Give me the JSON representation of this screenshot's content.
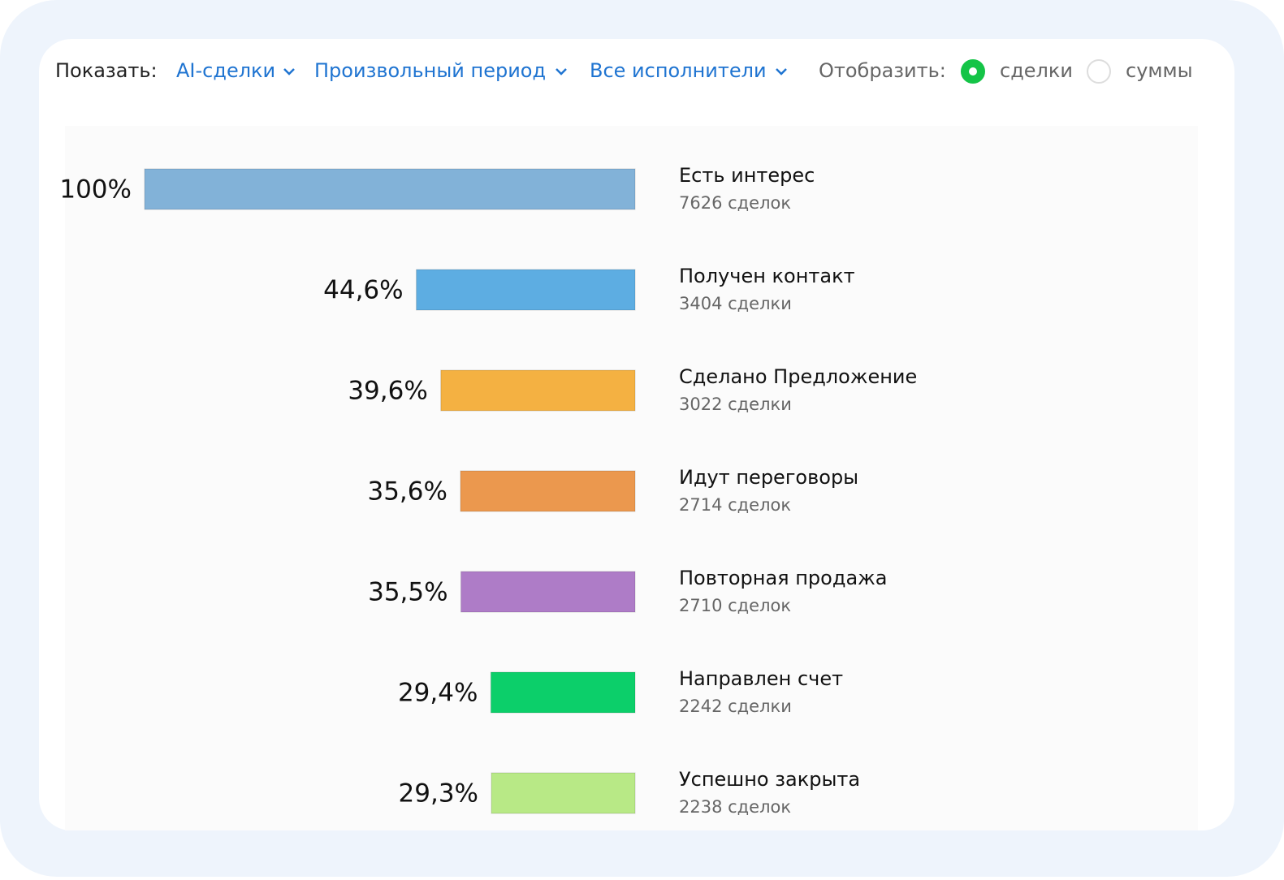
{
  "ui": {
    "show_label": "Показать:",
    "filters": [
      "AI-сделки",
      "Произвольный период",
      "Все исполнители"
    ],
    "display_label": "Отобразить:",
    "display_options": [
      "сделки",
      "суммы"
    ],
    "display_selected": 0
  },
  "chart_data": {
    "type": "funnel",
    "categories": [
      "Есть интерес",
      "Получен контакт",
      "Сделано Предложение",
      "Идут переговоры",
      "Повторная продажа",
      "Направлен счет",
      "Успешно закрыта"
    ],
    "sublabels": [
      "7626 сделок",
      "3404 сделки",
      "3022 сделки",
      "2714 сделок",
      "2710 сделок",
      "2242 сделки",
      "2238 сделок"
    ],
    "values": [
      100,
      44.6,
      39.6,
      35.6,
      35.5,
      29.4,
      29.3
    ],
    "value_labels": [
      "100%",
      "44,6%",
      "39,6%",
      "35,6%",
      "35,5%",
      "29,4%",
      "29,3%"
    ],
    "colors": [
      "#82b2d8",
      "#5dade2",
      "#f4b142",
      "#eb984e",
      "#ae7cc7",
      "#0ccf6a",
      "#b8e986"
    ],
    "xlim": [
      0,
      100
    ]
  }
}
